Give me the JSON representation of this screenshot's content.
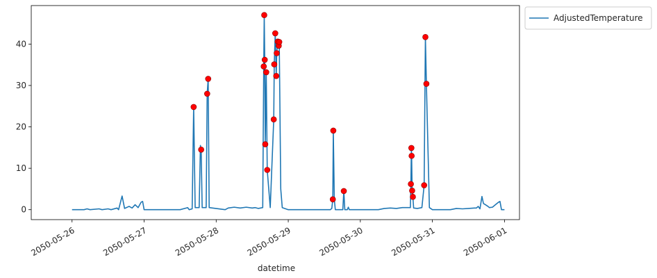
{
  "chart_data": {
    "type": "line",
    "xlabel": "datetime",
    "ylabel": "",
    "title": "",
    "x_tick_labels": [
      "2050-05-26",
      "2050-05-27",
      "2050-05-28",
      "2050-05-29",
      "2050-05-30",
      "2050-05-31",
      "2050-06-01"
    ],
    "y_ticks": [
      0,
      10,
      20,
      30,
      40
    ],
    "xlim": [
      "2050-05-25T10:25",
      "2050-06-01T05:00"
    ],
    "ylim": [
      -2.4,
      49.3
    ],
    "legend": {
      "position": "upper-right-outside",
      "entries": [
        "AdjustedTemperature"
      ]
    },
    "grid": false,
    "series": [
      {
        "name": "AdjustedTemperature",
        "color": "#1f77b4",
        "points": [
          [
            "2050-05-26T00:00",
            0
          ],
          [
            "2050-05-26T04:00",
            0
          ],
          [
            "2050-05-26T05:00",
            0.2
          ],
          [
            "2050-05-26T06:00",
            0
          ],
          [
            "2050-05-26T09:00",
            0.2
          ],
          [
            "2050-05-26T10:00",
            0
          ],
          [
            "2050-05-26T12:00",
            0.2
          ],
          [
            "2050-05-26T13:00",
            0
          ],
          [
            "2050-05-26T15:00",
            0.4
          ],
          [
            "2050-05-26T15:30",
            0
          ],
          [
            "2050-05-26T16:40",
            3.3
          ],
          [
            "2050-05-26T17:30",
            0.3
          ],
          [
            "2050-05-26T19:00",
            0.8
          ],
          [
            "2050-05-26T20:00",
            0.4
          ],
          [
            "2050-05-26T21:00",
            1.2
          ],
          [
            "2050-05-26T22:00",
            0.5
          ],
          [
            "2050-05-26T23:00",
            1.8
          ],
          [
            "2050-05-26T23:30",
            2.0
          ],
          [
            "2050-05-27T00:00",
            0
          ],
          [
            "2050-05-27T12:00",
            0
          ],
          [
            "2050-05-27T14:30",
            0.5
          ],
          [
            "2050-05-27T15:00",
            0
          ],
          [
            "2050-05-27T16:00",
            0.2
          ],
          [
            "2050-05-27T16:30",
            24.8
          ],
          [
            "2050-05-27T17:00",
            0.5
          ],
          [
            "2050-05-27T18:20",
            0.5
          ],
          [
            "2050-05-27T18:45",
            15.5
          ],
          [
            "2050-05-27T19:00",
            14.5
          ],
          [
            "2050-05-27T19:20",
            0.5
          ],
          [
            "2050-05-27T20:40",
            0.5
          ],
          [
            "2050-05-27T21:00",
            28.0
          ],
          [
            "2050-05-27T21:20",
            31.6
          ],
          [
            "2050-05-27T21:40",
            0.5
          ],
          [
            "2050-05-28T03:00",
            0
          ],
          [
            "2050-05-28T04:00",
            0.4
          ],
          [
            "2050-05-28T06:00",
            0.6
          ],
          [
            "2050-05-28T08:00",
            0.4
          ],
          [
            "2050-05-28T10:00",
            0.6
          ],
          [
            "2050-05-28T12:00",
            0.4
          ],
          [
            "2050-05-28T13:00",
            0.5
          ],
          [
            "2050-05-28T14:00",
            0.3
          ],
          [
            "2050-05-28T15:30",
            0.5
          ],
          [
            "2050-05-28T15:50",
            34.6
          ],
          [
            "2050-05-28T16:00",
            47.0
          ],
          [
            "2050-05-28T16:10",
            36.2
          ],
          [
            "2050-05-28T16:20",
            15.8
          ],
          [
            "2050-05-28T16:40",
            33.2
          ],
          [
            "2050-05-28T17:00",
            9.6
          ],
          [
            "2050-05-28T18:00",
            0.5
          ],
          [
            "2050-05-28T19:10",
            21.8
          ],
          [
            "2050-05-28T19:20",
            35.1
          ],
          [
            "2050-05-28T19:40",
            42.6
          ],
          [
            "2050-05-28T20:00",
            32.3
          ],
          [
            "2050-05-28T20:10",
            37.8
          ],
          [
            "2050-05-28T20:30",
            40.6
          ],
          [
            "2050-05-28T20:50",
            39.6
          ],
          [
            "2050-05-28T21:00",
            40.5
          ],
          [
            "2050-05-28T21:30",
            5.0
          ],
          [
            "2050-05-28T22:00",
            0.5
          ],
          [
            "2050-05-29T00:00",
            0
          ],
          [
            "2050-05-29T14:00",
            0
          ],
          [
            "2050-05-29T14:30",
            0.3
          ],
          [
            "2050-05-29T14:50",
            2.5
          ],
          [
            "2050-05-29T15:00",
            19.1
          ],
          [
            "2050-05-29T15:20",
            2.5
          ],
          [
            "2050-05-29T15:40",
            0
          ],
          [
            "2050-05-29T18:10",
            0
          ],
          [
            "2050-05-29T18:30",
            4.5
          ],
          [
            "2050-05-29T18:50",
            0
          ],
          [
            "2050-05-29T19:40",
            0
          ],
          [
            "2050-05-29T20:00",
            0.6
          ],
          [
            "2050-05-29T20:20",
            0
          ],
          [
            "2050-05-30T06:00",
            0
          ],
          [
            "2050-05-30T08:00",
            0.3
          ],
          [
            "2050-05-30T10:00",
            0.4
          ],
          [
            "2050-05-30T12:00",
            0.3
          ],
          [
            "2050-05-30T14:00",
            0.5
          ],
          [
            "2050-05-30T15:30",
            0.5
          ],
          [
            "2050-05-30T16:00",
            0.5
          ],
          [
            "2050-05-30T16:40",
            0.5
          ],
          [
            "2050-05-30T16:50",
            6.2
          ],
          [
            "2050-05-30T17:00",
            14.9
          ],
          [
            "2050-05-30T17:05",
            13.0
          ],
          [
            "2050-05-30T17:15",
            4.6
          ],
          [
            "2050-05-30T17:30",
            3.1
          ],
          [
            "2050-05-30T17:45",
            0.4
          ],
          [
            "2050-05-30T19:00",
            0.3
          ],
          [
            "2050-05-30T20:30",
            0.5
          ],
          [
            "2050-05-30T21:15",
            5.9
          ],
          [
            "2050-05-30T21:40",
            41.7
          ],
          [
            "2050-05-30T22:00",
            30.4
          ],
          [
            "2050-05-30T23:00",
            0.5
          ],
          [
            "2050-05-31T00:00",
            0
          ],
          [
            "2050-05-31T06:00",
            0
          ],
          [
            "2050-05-31T08:00",
            0.3
          ],
          [
            "2050-05-31T10:00",
            0.2
          ],
          [
            "2050-05-31T12:00",
            0.3
          ],
          [
            "2050-05-31T14:00",
            0.4
          ],
          [
            "2050-05-31T14:40",
            0.4
          ],
          [
            "2050-05-31T15:15",
            0.8
          ],
          [
            "2050-05-31T15:50",
            0.2
          ],
          [
            "2050-05-31T16:30",
            3.2
          ],
          [
            "2050-05-31T17:00",
            1.5
          ],
          [
            "2050-05-31T17:40",
            1.2
          ],
          [
            "2050-05-31T18:30",
            0.8
          ],
          [
            "2050-05-31T19:00",
            0.5
          ],
          [
            "2050-05-31T20:00",
            0.6
          ],
          [
            "2050-05-31T21:00",
            1.2
          ],
          [
            "2050-05-31T22:00",
            1.8
          ],
          [
            "2050-05-31T22:30",
            2.0
          ],
          [
            "2050-05-31T23:00",
            0
          ],
          [
            "2050-06-01T00:00",
            0
          ]
        ]
      }
    ],
    "markers": {
      "color": "#ff0000",
      "edge_color": "#8b0000",
      "points": [
        [
          "2050-05-27T16:30",
          24.8
        ],
        [
          "2050-05-27T19:00",
          14.5
        ],
        [
          "2050-05-27T21:00",
          28.0
        ],
        [
          "2050-05-27T21:20",
          31.6
        ],
        [
          "2050-05-28T15:50",
          34.6
        ],
        [
          "2050-05-28T16:00",
          47.0
        ],
        [
          "2050-05-28T16:10",
          36.2
        ],
        [
          "2050-05-28T16:20",
          15.8
        ],
        [
          "2050-05-28T16:40",
          33.2
        ],
        [
          "2050-05-28T17:00",
          9.6
        ],
        [
          "2050-05-28T19:10",
          21.8
        ],
        [
          "2050-05-28T19:20",
          35.1
        ],
        [
          "2050-05-28T19:40",
          42.6
        ],
        [
          "2050-05-28T20:00",
          32.3
        ],
        [
          "2050-05-28T20:10",
          37.8
        ],
        [
          "2050-05-28T20:30",
          40.6
        ],
        [
          "2050-05-28T20:50",
          39.6
        ],
        [
          "2050-05-28T21:00",
          40.5
        ],
        [
          "2050-05-29T14:50",
          2.5
        ],
        [
          "2050-05-29T15:00",
          19.1
        ],
        [
          "2050-05-29T18:30",
          4.5
        ],
        [
          "2050-05-30T16:50",
          6.2
        ],
        [
          "2050-05-30T17:00",
          14.9
        ],
        [
          "2050-05-30T17:05",
          13.0
        ],
        [
          "2050-05-30T17:15",
          4.6
        ],
        [
          "2050-05-30T17:30",
          3.1
        ],
        [
          "2050-05-30T21:15",
          5.9
        ],
        [
          "2050-05-30T21:40",
          41.7
        ],
        [
          "2050-05-30T22:00",
          30.4
        ]
      ]
    }
  }
}
